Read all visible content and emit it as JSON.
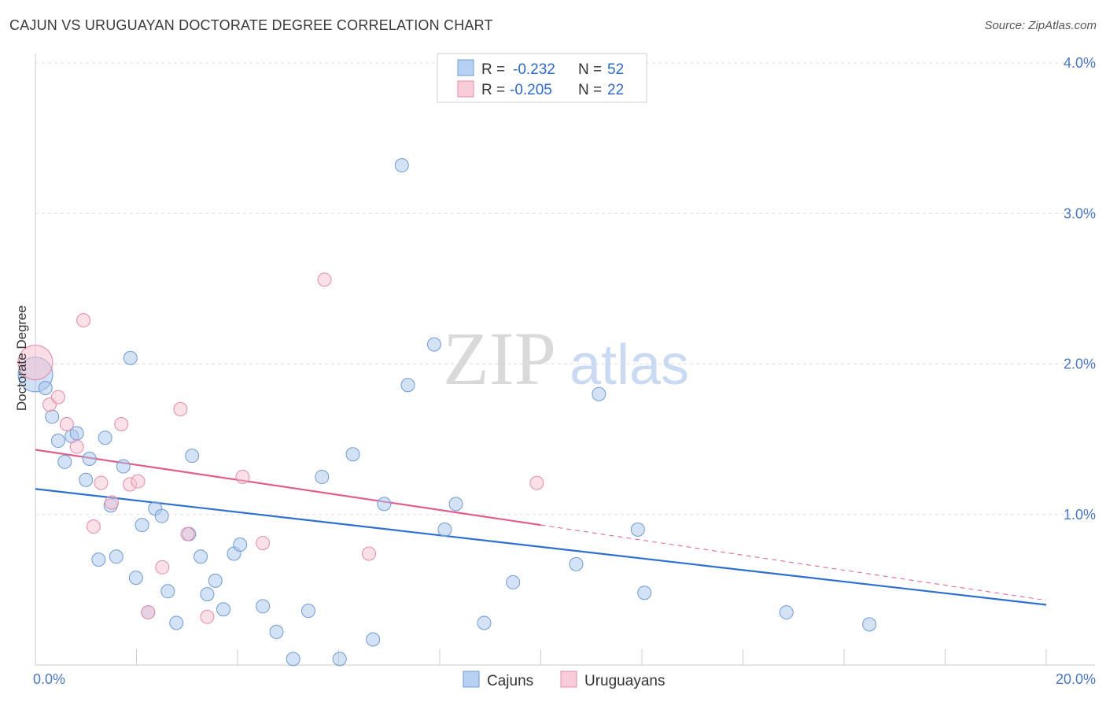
{
  "title": "CAJUN VS URUGUAYAN DOCTORATE DEGREE CORRELATION CHART",
  "source": "Source: ZipAtlas.com",
  "watermark": {
    "zip": "ZIP",
    "atlas": "atlas"
  },
  "chart_data": {
    "type": "scatter",
    "xlabel": "",
    "ylabel": "Doctorate Degree",
    "xlim": [
      0,
      20
    ],
    "ylim": [
      0,
      4.0
    ],
    "x_tick_labels": [
      "0.0%",
      "20.0%"
    ],
    "y_ticks": [
      1.0,
      2.0,
      3.0,
      4.0
    ],
    "y_tick_labels": [
      "1.0%",
      "2.0%",
      "3.0%",
      "4.0%"
    ],
    "grid": true,
    "legend": {
      "position": "top-center",
      "rows": [
        {
          "r_label": "R =",
          "r_value": "-0.232",
          "n_label": "N =",
          "n_value": "52"
        },
        {
          "r_label": "R =",
          "r_value": "-0.205",
          "n_label": "N =",
          "n_value": "22"
        }
      ]
    },
    "series": [
      {
        "name": "Cajuns",
        "color": "#a9c6ee",
        "stroke": "#6f9bd6",
        "trend_color": "#2e6fcf",
        "trend": {
          "x0": 0,
          "y0": 1.17,
          "x1": 20,
          "y1": 0.4
        },
        "points": [
          [
            0.0,
            1.93
          ],
          [
            0.2,
            1.84
          ],
          [
            0.33,
            1.65
          ],
          [
            0.45,
            1.49
          ],
          [
            0.58,
            1.35
          ],
          [
            0.72,
            1.52
          ],
          [
            0.82,
            1.54
          ],
          [
            1.0,
            1.23
          ],
          [
            1.07,
            1.37
          ],
          [
            1.25,
            0.7
          ],
          [
            1.38,
            1.51
          ],
          [
            1.49,
            1.06
          ],
          [
            1.6,
            0.72
          ],
          [
            1.74,
            1.32
          ],
          [
            1.88,
            2.04
          ],
          [
            1.99,
            0.58
          ],
          [
            2.11,
            0.93
          ],
          [
            2.23,
            0.35
          ],
          [
            2.37,
            1.04
          ],
          [
            2.5,
            0.99
          ],
          [
            2.62,
            0.49
          ],
          [
            2.79,
            0.28
          ],
          [
            3.04,
            0.87
          ],
          [
            3.1,
            1.39
          ],
          [
            3.27,
            0.72
          ],
          [
            3.4,
            0.47
          ],
          [
            3.56,
            0.56
          ],
          [
            3.72,
            0.37
          ],
          [
            3.93,
            0.74
          ],
          [
            4.05,
            0.8
          ],
          [
            4.5,
            0.39
          ],
          [
            4.77,
            0.22
          ],
          [
            5.1,
            0.04
          ],
          [
            5.4,
            0.36
          ],
          [
            5.67,
            1.25
          ],
          [
            6.02,
            0.04
          ],
          [
            6.28,
            1.4
          ],
          [
            6.68,
            0.17
          ],
          [
            6.9,
            1.07
          ],
          [
            7.25,
            3.32
          ],
          [
            7.37,
            1.86
          ],
          [
            7.89,
            2.13
          ],
          [
            8.1,
            0.9
          ],
          [
            8.32,
            1.07
          ],
          [
            8.88,
            0.28
          ],
          [
            9.45,
            0.55
          ],
          [
            10.7,
            0.67
          ],
          [
            11.15,
            1.8
          ],
          [
            11.92,
            0.9
          ],
          [
            12.05,
            0.48
          ],
          [
            14.86,
            0.35
          ],
          [
            16.5,
            0.27
          ]
        ]
      },
      {
        "name": "Uruguayans",
        "color": "#f6c1cf",
        "stroke": "#e98aa7",
        "trend_color": "#e05e8b",
        "trend": {
          "x0": 0,
          "y0": 1.43,
          "x1": 10,
          "y1": 0.93,
          "dashed_x1": 20,
          "dashed_y1": 0.43
        },
        "points": [
          [
            0.0,
            2.01
          ],
          [
            0.28,
            1.73
          ],
          [
            0.45,
            1.78
          ],
          [
            0.62,
            1.6
          ],
          [
            0.82,
            1.45
          ],
          [
            0.95,
            2.29
          ],
          [
            1.15,
            0.92
          ],
          [
            1.3,
            1.21
          ],
          [
            1.51,
            1.08
          ],
          [
            1.7,
            1.6
          ],
          [
            1.87,
            1.2
          ],
          [
            2.03,
            1.22
          ],
          [
            2.23,
            0.35
          ],
          [
            2.51,
            0.65
          ],
          [
            2.87,
            1.7
          ],
          [
            3.01,
            0.87
          ],
          [
            3.4,
            0.32
          ],
          [
            4.1,
            1.25
          ],
          [
            4.5,
            0.81
          ],
          [
            5.72,
            2.56
          ],
          [
            6.6,
            0.74
          ],
          [
            9.92,
            1.21
          ]
        ]
      }
    ]
  },
  "bottom_legend": {
    "items": [
      {
        "label": "Cajuns"
      },
      {
        "label": "Uruguayans"
      }
    ]
  }
}
